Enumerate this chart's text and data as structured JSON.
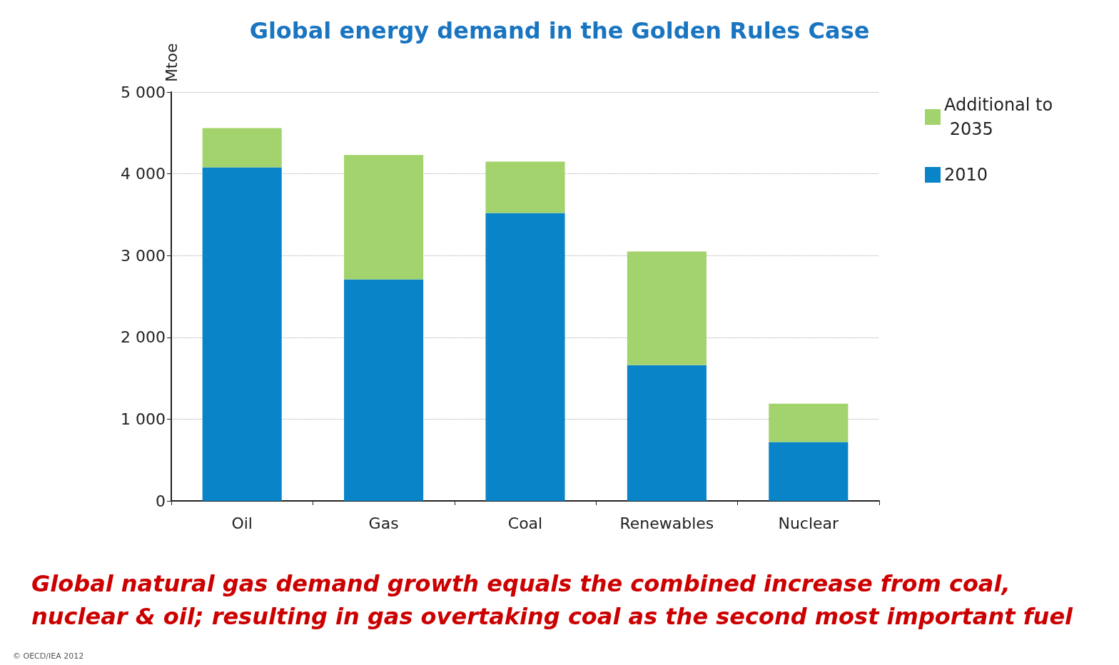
{
  "chart_data": {
    "type": "bar",
    "title": "Global energy demand in the Golden Rules Case",
    "ylabel": "Mtoe",
    "categories": [
      "Oil",
      "Gas",
      "Coal",
      "Renewables",
      "Nuclear"
    ],
    "stacked": true,
    "series": [
      {
        "name": "2010",
        "color": "#0a84c8",
        "values": [
          4080,
          2710,
          3520,
          1660,
          720
        ]
      },
      {
        "name": "Additional to 2035",
        "color": "#a3d36c",
        "values": [
          480,
          1520,
          630,
          1390,
          470
        ]
      }
    ],
    "ylim": [
      0,
      5000
    ],
    "yticks": [
      0,
      {
        "value": 1000,
        "label": "1 000"
      },
      {
        "value": 2000,
        "label": "2 000"
      },
      {
        "value": 3000,
        "label": "3 000"
      },
      {
        "value": 4000,
        "label": "4 000"
      },
      {
        "value": 5000,
        "label": "5 000"
      }
    ],
    "grid": "y",
    "legend": "top right",
    "annotations": [
      "Global natural gas demand growth equals the combined increase from coal, nuclear & oil; resulting in gas overtaking coal as the second most important fuel",
      "© OECD/IEA 2012"
    ]
  }
}
